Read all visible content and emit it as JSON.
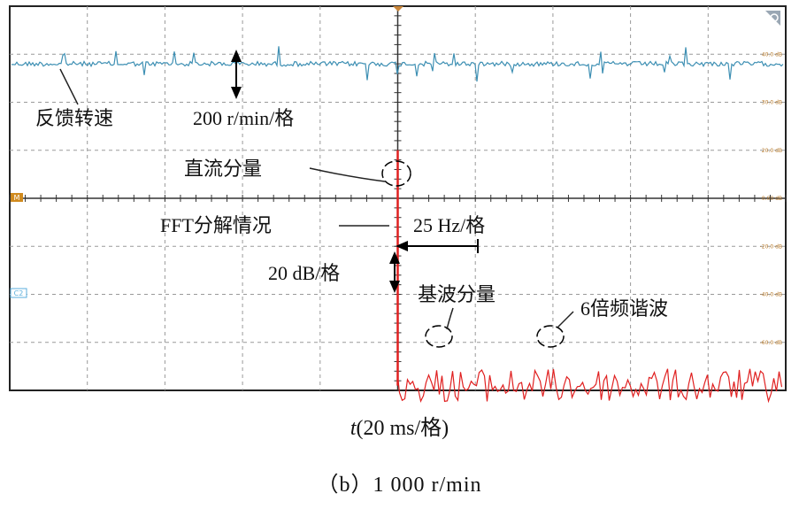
{
  "chart_data": {
    "type": "line",
    "title": "",
    "xlabel": {
      "symbol": "t",
      "text": "(20 ms/格)"
    },
    "caption": "（b）1 000 r/min",
    "x_divisions": 20,
    "x_scale_ms_per_div": 20,
    "y_divisions": 8,
    "series": [
      {
        "name": "反馈转速",
        "color": "#3d8fb3",
        "scale_label": "200 r/min/格",
        "level_div": 2.8,
        "noise_div": 0.05
      },
      {
        "name": "FFT分解情况",
        "color": "#e02020",
        "scale_label": "20 dB/格",
        "freq_label": "25 Hz/格",
        "dc_peak_div": 1.0,
        "floor_div": -3.9,
        "spread_div": 0.35
      }
    ],
    "annotations": {
      "speed": "反馈转速",
      "speed_scale": "200 r/min/格",
      "dc": "直流分量",
      "fft": "FFT分解情况",
      "freq_scale": "25 Hz/格",
      "db_scale": "20 dB/格",
      "fundamental": "基波分量",
      "harmonic": "6倍频谐波"
    },
    "right_scale": [
      "40.0 dB",
      "30.0 dB",
      "20.0 dB",
      "0.00 dB",
      "-20.0 dB",
      "-40.0 dB",
      "-60.0 dB"
    ],
    "channel_markers": {
      "math": "M",
      "ch2": "C2"
    }
  }
}
